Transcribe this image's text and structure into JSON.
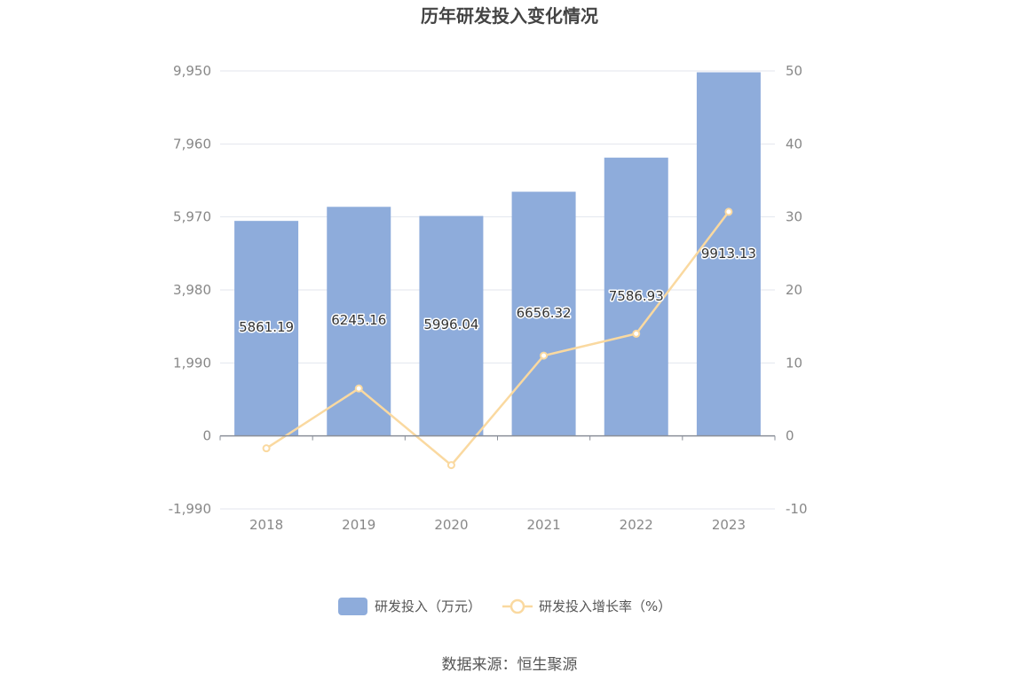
{
  "chart_data": {
    "type": "bar",
    "title": "历年研发投入变化情况",
    "categories": [
      "2018",
      "2019",
      "2020",
      "2021",
      "2022",
      "2023"
    ],
    "series": [
      {
        "name": "研发投入（万元）",
        "type": "bar",
        "axis": "left",
        "color": "#8eacdb",
        "values": [
          5861.19,
          6245.16,
          5996.04,
          6656.32,
          7586.93,
          9913.13
        ],
        "labels": [
          "5861.19",
          "6245.16",
          "5996.04",
          "6656.32",
          "7586.93",
          "9913.13"
        ]
      },
      {
        "name": "研发投入增长率（%）",
        "type": "line",
        "axis": "right",
        "color": "#fad9a0",
        "values": [
          -1.7,
          6.5,
          -4.0,
          11.0,
          14.0,
          30.7
        ]
      }
    ],
    "y_left": {
      "ylim": [
        -1990,
        9950
      ],
      "ticks": [
        "9,950",
        "7,960",
        "5,970",
        "3,980",
        "1,990",
        "0",
        "-1,990"
      ],
      "tick_values": [
        9950,
        7960,
        5970,
        3980,
        1990,
        0,
        -1990
      ]
    },
    "y_right": {
      "ylim": [
        -10,
        50
      ],
      "ticks": [
        "50",
        "40",
        "30",
        "20",
        "10",
        "0",
        "-10"
      ],
      "tick_values": [
        50,
        40,
        30,
        20,
        10,
        0,
        -10
      ]
    },
    "grid": true,
    "legend_position": "bottom"
  },
  "source_text": "数据来源：恒生聚源"
}
